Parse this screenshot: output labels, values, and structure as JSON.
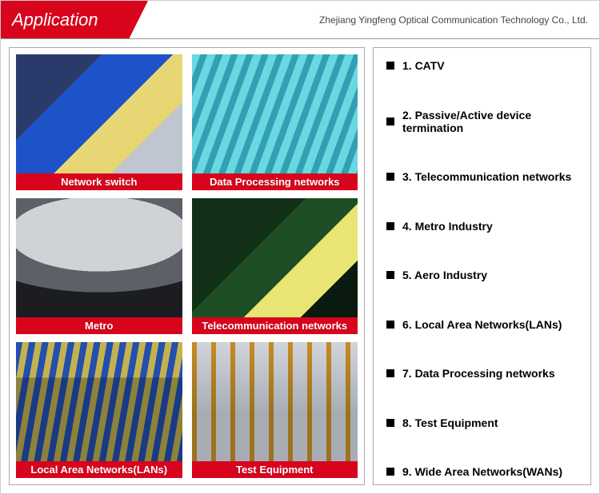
{
  "header": {
    "title": "Application",
    "company": "Zhejiang Yingfeng Optical Communication Technology Co., Ltd."
  },
  "colors": {
    "brand_red": "#d8041c",
    "border_gray": "#aaaaaa",
    "text_black": "#000000"
  },
  "gallery": [
    {
      "label": "Network switch"
    },
    {
      "label": "Data Processing networks"
    },
    {
      "label": "Metro"
    },
    {
      "label": "Telecommunication networks"
    },
    {
      "label": "Local Area Networks(LANs)"
    },
    {
      "label": "Test Equipment"
    }
  ],
  "list": [
    "1. CATV",
    "2. Passive/Active device termination",
    "3. Telecommunication networks",
    "4. Metro Industry",
    "5. Aero Industry",
    "6. Local Area Networks(LANs)",
    "7. Data Processing networks",
    "8. Test Equipment",
    "9. Wide Area Networks(WANs)"
  ]
}
